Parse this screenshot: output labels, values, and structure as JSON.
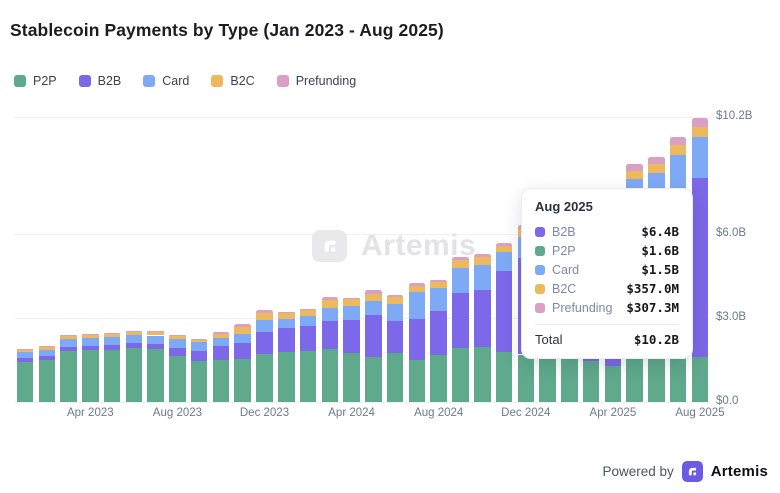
{
  "header": {
    "title": "Stablecoin Payments by Type (Jan 2023 - Aug 2025)"
  },
  "chart_data": {
    "type": "bar",
    "stacked": true,
    "title": "Stablecoin Payments by Type (Jan 2023 - Aug 2025)",
    "unit": "USD billions",
    "ylim": [
      0,
      10.2
    ],
    "grid": true,
    "legend_position": "top-left",
    "categories": [
      "Jan 2023",
      "Feb 2023",
      "Mar 2023",
      "Apr 2023",
      "May 2023",
      "Jun 2023",
      "Jul 2023",
      "Aug 2023",
      "Sep 2023",
      "Oct 2023",
      "Nov 2023",
      "Dec 2023",
      "Jan 2024",
      "Feb 2024",
      "Mar 2024",
      "Apr 2024",
      "May 2024",
      "Jun 2024",
      "Jul 2024",
      "Aug 2024",
      "Sep 2024",
      "Oct 2024",
      "Nov 2024",
      "Dec 2024",
      "Jan 2025",
      "Feb 2025",
      "Mar 2025",
      "Apr 2025",
      "May 2025",
      "Jun 2025",
      "Jul 2025",
      "Aug 2025"
    ],
    "x_tick_labels": [
      "Apr 2023",
      "Aug 2023",
      "Dec 2023",
      "Apr 2024",
      "Aug 2024",
      "Dec 2024",
      "Apr 2025",
      "Aug 2025"
    ],
    "y_ticks": [
      {
        "label": "$10.2B",
        "value": 10.2
      },
      {
        "label": "$6.0B",
        "value": 6.0
      },
      {
        "label": "$3.0B",
        "value": 3.0
      },
      {
        "label": "$0.0",
        "value": 0.0
      }
    ],
    "series": [
      {
        "name": "P2P",
        "color": "#5fa98c",
        "values": [
          1.42,
          1.5,
          1.82,
          1.85,
          1.87,
          1.92,
          1.88,
          1.65,
          1.48,
          1.5,
          1.55,
          1.72,
          1.78,
          1.83,
          1.9,
          1.74,
          1.6,
          1.74,
          1.52,
          1.67,
          1.95,
          1.98,
          1.78,
          1.7,
          1.7,
          1.7,
          1.45,
          1.3,
          1.6,
          1.6,
          1.6,
          1.6
        ]
      },
      {
        "name": "B2B",
        "color": "#7c68e8",
        "values": [
          0.14,
          0.15,
          0.15,
          0.15,
          0.16,
          0.2,
          0.2,
          0.3,
          0.36,
          0.52,
          0.55,
          0.78,
          0.88,
          0.9,
          1.0,
          1.2,
          1.5,
          1.15,
          1.45,
          1.6,
          1.95,
          2.02,
          2.9,
          3.45,
          3.7,
          3.9,
          4.35,
          4.7,
          5.15,
          5.35,
          5.9,
          6.4
        ]
      },
      {
        "name": "Card",
        "color": "#7ea9f4",
        "values": [
          0.22,
          0.22,
          0.3,
          0.3,
          0.28,
          0.28,
          0.3,
          0.32,
          0.3,
          0.28,
          0.35,
          0.43,
          0.3,
          0.34,
          0.48,
          0.48,
          0.52,
          0.62,
          0.95,
          0.82,
          0.88,
          0.89,
          0.68,
          0.75,
          0.8,
          0.85,
          0.95,
          1.05,
          1.22,
          1.25,
          1.35,
          1.5
        ]
      },
      {
        "name": "B2C",
        "color": "#edb95e",
        "values": [
          0.1,
          0.1,
          0.11,
          0.11,
          0.12,
          0.12,
          0.12,
          0.1,
          0.09,
          0.14,
          0.25,
          0.25,
          0.21,
          0.21,
          0.26,
          0.25,
          0.26,
          0.24,
          0.24,
          0.22,
          0.3,
          0.29,
          0.22,
          0.3,
          0.22,
          0.25,
          0.25,
          0.25,
          0.3,
          0.33,
          0.35,
          0.357
        ]
      },
      {
        "name": "Prefunding",
        "color": "#d9a0c4",
        "values": [
          0.02,
          0.02,
          0.02,
          0.03,
          0.03,
          0.03,
          0.03,
          0.03,
          0.03,
          0.05,
          0.1,
          0.11,
          0.05,
          0.06,
          0.12,
          0.06,
          0.12,
          0.08,
          0.1,
          0.06,
          0.12,
          0.12,
          0.12,
          0.15,
          0.18,
          0.2,
          0.2,
          0.2,
          0.25,
          0.25,
          0.3,
          0.3073
        ]
      }
    ]
  },
  "tooltip": {
    "title": "Aug 2025",
    "rows": [
      {
        "series": "B2B",
        "value": "$6.4B"
      },
      {
        "series": "P2P",
        "value": "$1.6B"
      },
      {
        "series": "Card",
        "value": "$1.5B"
      },
      {
        "series": "B2C",
        "value": "$357.0M"
      },
      {
        "series": "Prefunding",
        "value": "$307.3M"
      }
    ],
    "total_label": "Total",
    "total_value": "$10.2B"
  },
  "watermark": {
    "text": "Artemis"
  },
  "footer": {
    "powered_by": "Powered by",
    "brand": "Artemis"
  }
}
